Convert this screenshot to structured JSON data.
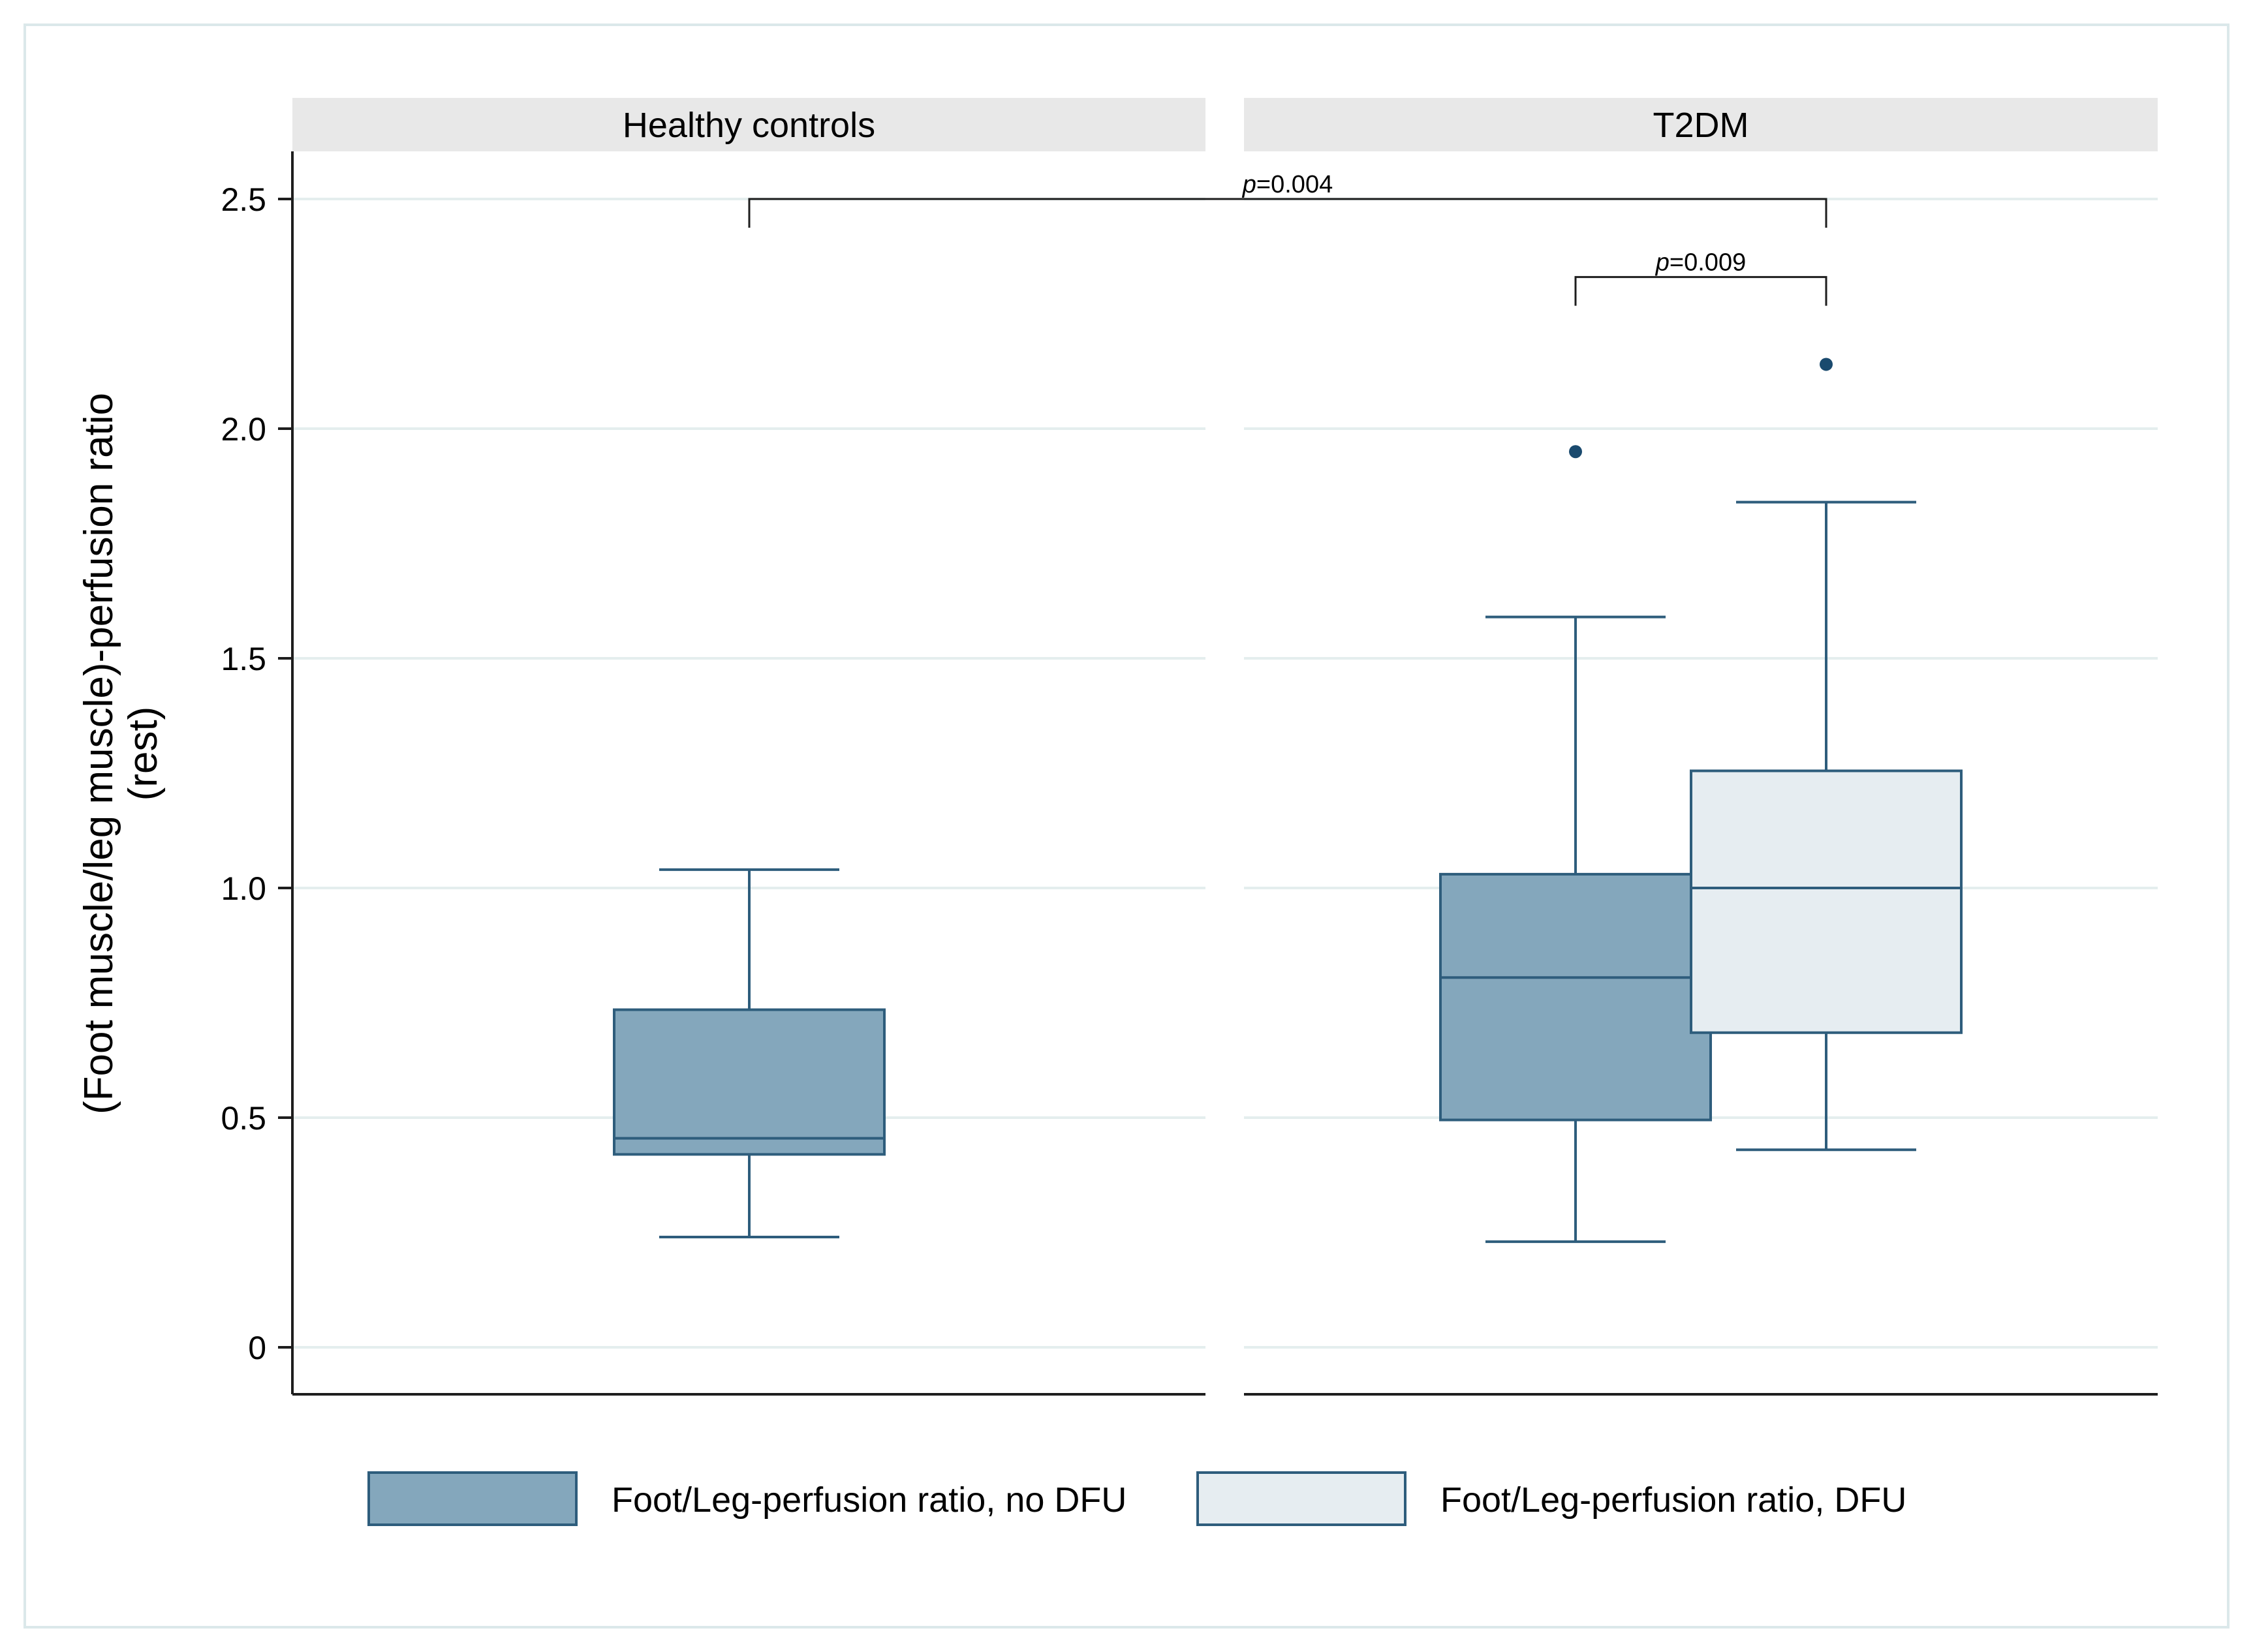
{
  "chart_data": {
    "type": "box",
    "y_axis": {
      "label_line1": "(Foot muscle/leg muscle)-perfusion ratio",
      "label_line2": "(rest)",
      "ylim": [
        0,
        2.5
      ],
      "ticks": [
        0,
        0.5,
        1.0,
        1.5,
        2.0,
        2.5
      ],
      "tick_labels": [
        "0",
        "0.5",
        "1.0",
        "1.5",
        "2.0",
        "2.5"
      ],
      "grid": true
    },
    "panels": [
      {
        "id": "healthy",
        "title": "Healthy controls",
        "boxes": [
          {
            "series": "no_dfu",
            "slot": "center",
            "whisker_low": 0.24,
            "q1": 0.42,
            "median": 0.455,
            "q3": 0.735,
            "whisker_high": 1.04,
            "outliers": []
          }
        ]
      },
      {
        "id": "t2dm",
        "title": "T2DM",
        "boxes": [
          {
            "series": "no_dfu",
            "slot": "left",
            "whisker_low": 0.23,
            "q1": 0.495,
            "median": 0.805,
            "q3": 1.03,
            "whisker_high": 1.59,
            "outliers": [
              1.95
            ]
          },
          {
            "series": "dfu",
            "slot": "right",
            "whisker_low": 0.43,
            "q1": 0.685,
            "median": 1.0,
            "q3": 1.255,
            "whisker_high": 1.84,
            "outliers": [
              2.14
            ]
          }
        ]
      }
    ],
    "series": [
      {
        "id": "no_dfu",
        "name": "Foot/Leg-perfusion ratio, no DFU",
        "fill": "#84a7bc",
        "stroke": "#2e5d7c"
      },
      {
        "id": "dfu",
        "name": "Foot/Leg-perfusion ratio, DFU",
        "fill": "#e6edf1",
        "stroke": "#2e5d7c"
      }
    ],
    "annotations": [
      {
        "from": "healthy:center",
        "to": "t2dm:right",
        "y": 2.5,
        "p_symbol": "p",
        "value": "=0.004"
      },
      {
        "from": "t2dm:left",
        "to": "t2dm:right",
        "y": 2.33,
        "p_symbol": "p",
        "value": "=0.009"
      }
    ],
    "legend_position": "bottom"
  },
  "colors": {
    "grid": "#e4eeee",
    "strip": "#e8e8e8",
    "outlier": "#1a4a6e",
    "frame": "#dbe8ea"
  }
}
